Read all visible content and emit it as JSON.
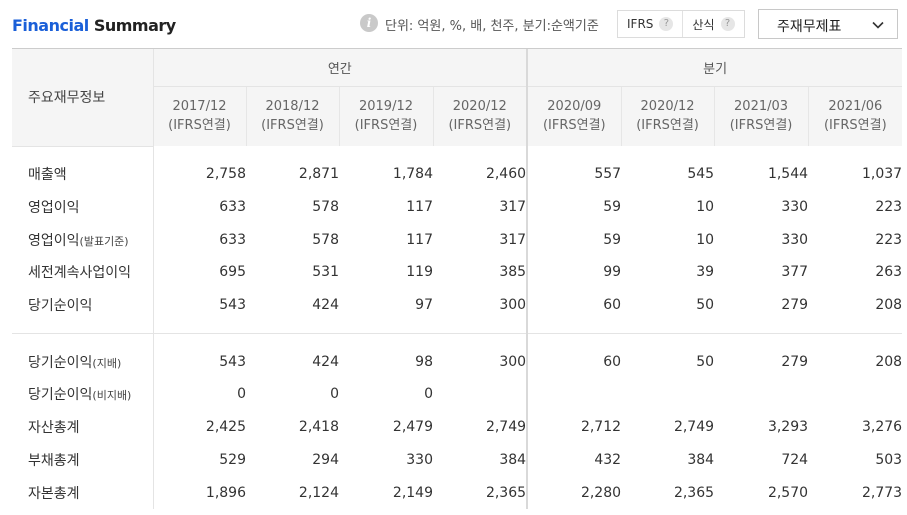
{
  "header": {
    "title_part1": "Financial",
    "title_part2": "Summary",
    "info_icon": "info-icon",
    "unit_text": "단위: 억원, %, 배, 천주, 분기:순액기준",
    "ifrs_label": "IFRS",
    "formula_label": "산식",
    "help_icon": "?",
    "select_value": "주재무제표"
  },
  "table": {
    "label_header": "주요재무정보",
    "group_annual": "연간",
    "group_quarter": "분기",
    "periods": [
      {
        "date": "2017/12",
        "basis": "(IFRS연결)"
      },
      {
        "date": "2018/12",
        "basis": "(IFRS연결)"
      },
      {
        "date": "2019/12",
        "basis": "(IFRS연결)"
      },
      {
        "date": "2020/12",
        "basis": "(IFRS연결)"
      },
      {
        "date": "2020/09",
        "basis": "(IFRS연결)"
      },
      {
        "date": "2020/12",
        "basis": "(IFRS연결)"
      },
      {
        "date": "2021/03",
        "basis": "(IFRS연결)"
      },
      {
        "date": "2021/06",
        "basis": "(IFRS연결)"
      }
    ],
    "rows_a": [
      {
        "label": "매출액",
        "note": "",
        "values": [
          "2,758",
          "2,871",
          "1,784",
          "2,460",
          "557",
          "545",
          "1,544",
          "1,037"
        ]
      },
      {
        "label": "영업이익",
        "note": "",
        "values": [
          "633",
          "578",
          "117",
          "317",
          "59",
          "10",
          "330",
          "223"
        ]
      },
      {
        "label": "영업이익",
        "note": "(발표기준)",
        "values": [
          "633",
          "578",
          "117",
          "317",
          "59",
          "10",
          "330",
          "223"
        ]
      },
      {
        "label": "세전계속사업이익",
        "note": "",
        "values": [
          "695",
          "531",
          "119",
          "385",
          "99",
          "39",
          "377",
          "263"
        ]
      },
      {
        "label": "당기순이익",
        "note": "",
        "values": [
          "543",
          "424",
          "97",
          "300",
          "60",
          "50",
          "279",
          "208"
        ]
      }
    ],
    "rows_b": [
      {
        "label": "당기순이익",
        "note": "(지배)",
        "values": [
          "543",
          "424",
          "98",
          "300",
          "60",
          "50",
          "279",
          "208"
        ]
      },
      {
        "label": "당기순이익",
        "note": "(비지배)",
        "values": [
          "0",
          "0",
          "0",
          "",
          "",
          "",
          "",
          ""
        ]
      },
      {
        "label": "자산총계",
        "note": "",
        "values": [
          "2,425",
          "2,418",
          "2,479",
          "2,749",
          "2,712",
          "2,749",
          "3,293",
          "3,276"
        ]
      },
      {
        "label": "부채총계",
        "note": "",
        "values": [
          "529",
          "294",
          "330",
          "384",
          "432",
          "384",
          "724",
          "503"
        ]
      },
      {
        "label": "자본총계",
        "note": "",
        "values": [
          "1,896",
          "2,124",
          "2,149",
          "2,365",
          "2,280",
          "2,365",
          "2,570",
          "2,773"
        ]
      }
    ]
  }
}
